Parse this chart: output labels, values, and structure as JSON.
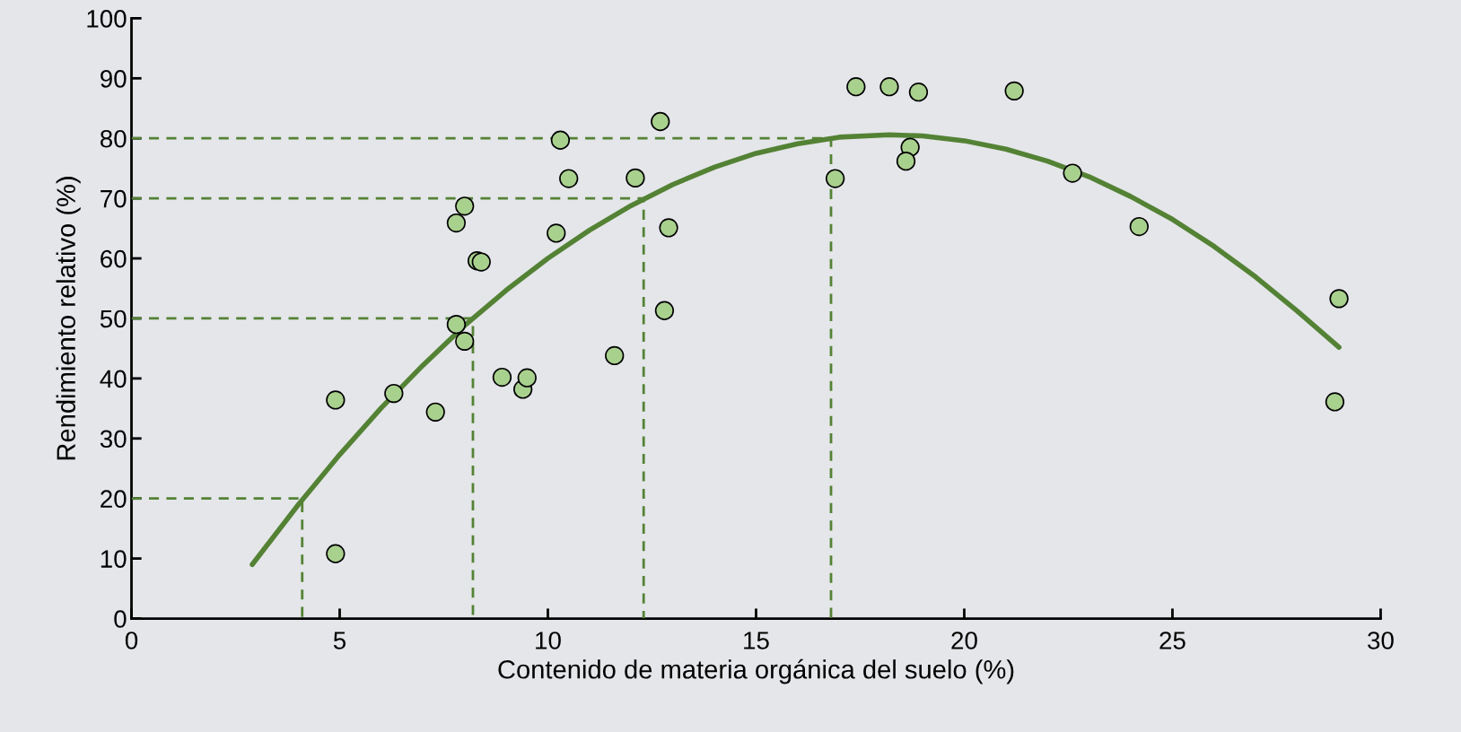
{
  "chart_data": {
    "type": "scatter",
    "xlabel": "Contenido de materia orgánica del suelo (%)",
    "ylabel": "Rendimiento relativo (%)",
    "xlim": [
      0,
      30
    ],
    "ylim": [
      0,
      100
    ],
    "xticks": [
      0,
      5,
      10,
      15,
      20,
      25,
      30
    ],
    "yticks": [
      0,
      10,
      20,
      30,
      40,
      50,
      60,
      70,
      80,
      90,
      100
    ],
    "grid": false,
    "series": [
      {
        "marker": "circle",
        "color": "#a9d18e",
        "x": [
          4.9,
          4.9,
          6.3,
          7.3,
          7.8,
          8.0,
          7.8,
          8.0,
          8.3,
          8.4,
          8.9,
          9.4,
          9.5,
          10.2,
          10.3,
          10.5,
          11.6,
          12.1,
          12.7,
          12.8,
          12.9,
          16.9,
          17.4,
          18.2,
          18.9,
          18.7,
          18.6,
          21.2,
          22.6,
          24.2,
          28.9,
          29.0
        ],
        "values": [
          36.4,
          10.8,
          37.5,
          34.4,
          49.0,
          46.2,
          65.9,
          68.7,
          59.6,
          59.4,
          40.2,
          38.2,
          40.1,
          64.2,
          79.7,
          73.3,
          43.8,
          73.4,
          82.8,
          51.3,
          65.1,
          73.3,
          88.6,
          88.6,
          87.7,
          78.5,
          76.2,
          87.9,
          74.2,
          65.3,
          36.1,
          53.3
        ]
      },
      {
        "type": "line",
        "marker": "none",
        "line_style": "solid",
        "color": "#548235",
        "x": [
          2.9,
          4,
          5,
          6,
          7,
          8,
          9,
          10,
          11,
          12,
          13,
          14,
          15,
          16,
          17,
          18.2,
          19,
          20,
          21,
          22,
          23,
          24,
          25,
          26,
          27,
          28,
          29
        ],
        "values": [
          9,
          18.9,
          27.3,
          35.1,
          42.2,
          48.8,
          54.7,
          60.0,
          64.7,
          68.8,
          72.3,
          75.2,
          77.5,
          79.1,
          80.2,
          80.6,
          80.4,
          79.6,
          78.2,
          76.2,
          73.6,
          70.3,
          66.5,
          62.0,
          56.9,
          51.2,
          45.2
        ]
      },
      {
        "type": "line",
        "marker": "none",
        "line_style": "dashed",
        "color": "#548235",
        "x": [
          0,
          4.1,
          4.1
        ],
        "values": [
          20,
          20,
          0
        ]
      },
      {
        "type": "line",
        "marker": "none",
        "line_style": "dashed",
        "color": "#548235",
        "x": [
          0,
          8.2,
          8.2
        ],
        "values": [
          50,
          50,
          0
        ]
      },
      {
        "type": "line",
        "marker": "none",
        "line_style": "dashed",
        "color": "#548235",
        "x": [
          0,
          12.3,
          12.3
        ],
        "values": [
          70,
          70,
          0
        ]
      },
      {
        "type": "line",
        "marker": "none",
        "line_style": "dashed",
        "color": "#548235",
        "x": [
          0,
          16.8,
          16.8
        ],
        "values": [
          80,
          80,
          0
        ]
      }
    ]
  }
}
